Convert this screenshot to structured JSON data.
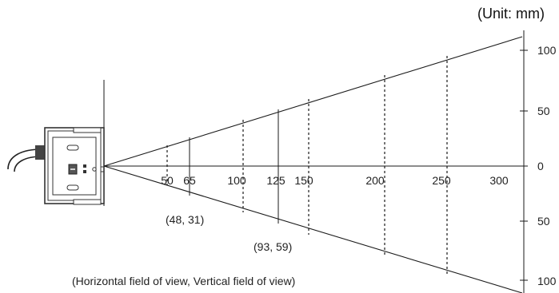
{
  "unit_label": "(Unit: mm)",
  "distance_labels": [
    "50",
    "65",
    "100",
    "125",
    "150",
    "200",
    "250",
    "300"
  ],
  "origin_label": "0",
  "side_tick_labels": [
    "100",
    "50",
    "0",
    "50",
    "100"
  ],
  "annotations": {
    "fov_65": "(48, 31)",
    "fov_125": "(93, 59)",
    "legend": "(Horizontal field of view, Vertical field of view)"
  },
  "icons": {
    "sensor": "camera-sensor-icon",
    "cable": "cable-icon"
  },
  "colors": {
    "line": "#1a1a1a",
    "sensor_body": "#555555",
    "background": "#ffffff"
  },
  "chart_data": {
    "type": "field-of-view diagram",
    "title": "",
    "unit": "(Unit: mm)",
    "x_label": "",
    "x_ticks": [
      50,
      65,
      100,
      125,
      150,
      200,
      250,
      300
    ],
    "y_ticks": [
      100,
      50,
      0,
      50,
      100
    ],
    "field_of_view_points": [
      {
        "distance": 65,
        "horizontal": 48,
        "vertical": 31
      },
      {
        "distance": 125,
        "horizontal": 93,
        "vertical": 59
      }
    ],
    "dashed_distances": [
      50,
      100,
      150,
      200,
      250
    ],
    "solid_distances": [
      65,
      125
    ]
  }
}
